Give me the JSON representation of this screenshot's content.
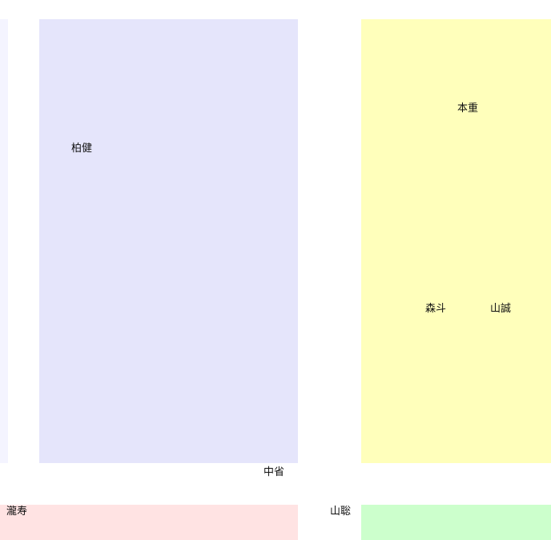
{
  "colors": {
    "strip_left": "#f4f4ff",
    "panel_lavender": "#e5e5fb",
    "panel_yellow": "#ffffbb",
    "bar_pink": "#ffe3e3",
    "bar_green": "#ccffcc"
  },
  "labels": {
    "lavender_panel": "柏健",
    "yellow_top": "本重",
    "yellow_mid_left": "森斗",
    "yellow_mid_right": "山誠",
    "lavender_bottom": "中省",
    "pink_bar": "瀧寿",
    "green_bar": "山聡"
  }
}
